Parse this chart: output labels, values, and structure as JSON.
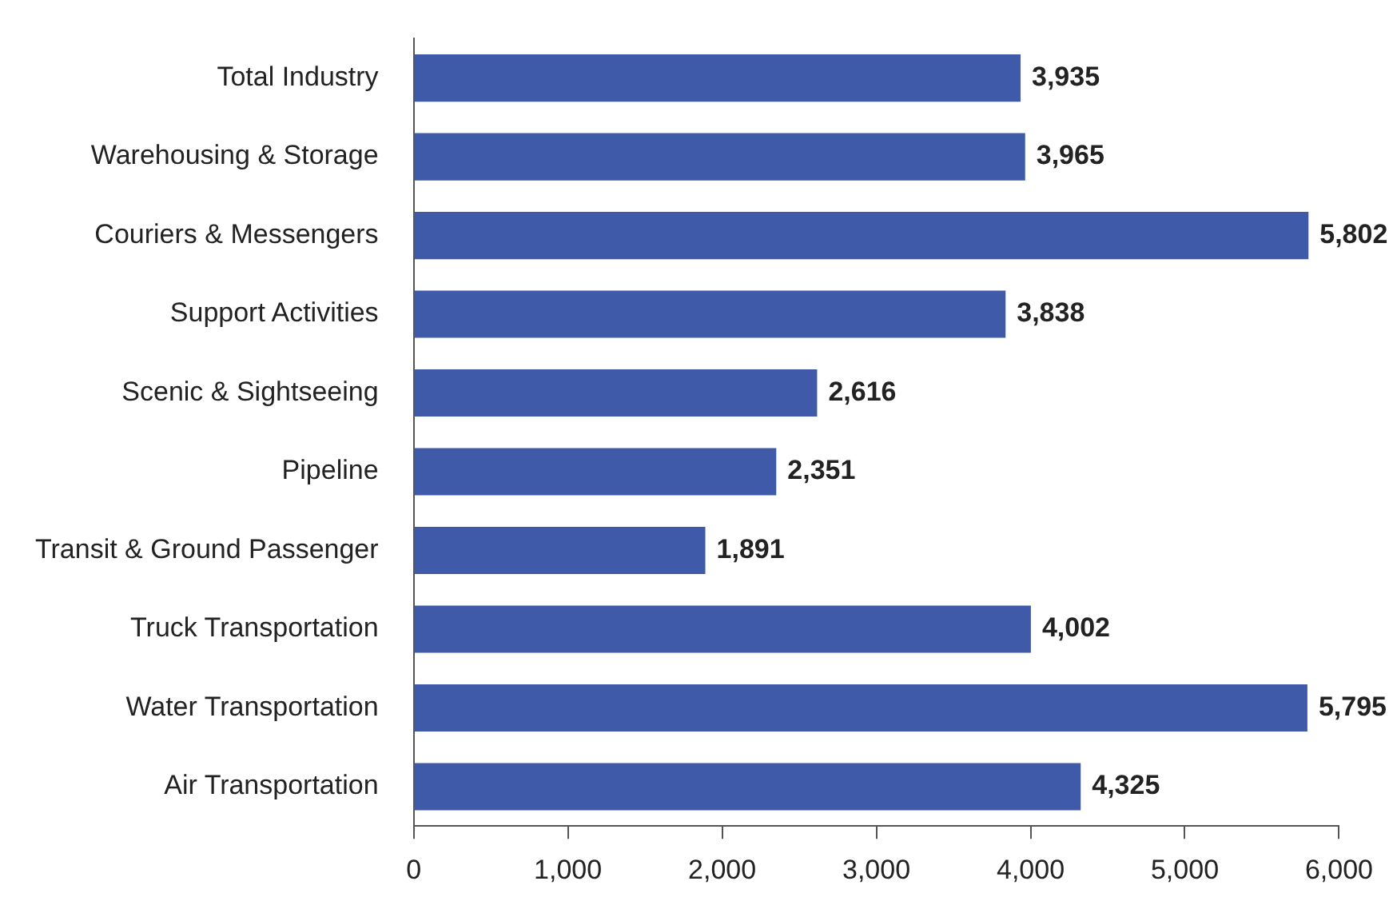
{
  "chart_data": {
    "type": "bar",
    "orientation": "horizontal",
    "categories": [
      "Total Industry",
      "Warehousing & Storage",
      "Couriers & Messengers",
      "Support Activities",
      "Scenic & Sightseeing",
      "Pipeline",
      "Transit & Ground Passenger",
      "Truck Transportation",
      "Water Transportation",
      "Air Transportation"
    ],
    "values": [
      3935,
      3965,
      5802,
      3838,
      2616,
      2351,
      1891,
      4002,
      5795,
      4325
    ],
    "value_labels": [
      "3,935",
      "3,965",
      "5,802",
      "3,838",
      "2,616",
      "2,351",
      "1,891",
      "4,002",
      "5,795",
      "4,325"
    ],
    "color": "#3f5aa9",
    "xlim": [
      0,
      6000
    ],
    "xticks": [
      0,
      {
        "value": 1000,
        "label": "1,000"
      },
      {
        "value": 2000,
        "label": "2,000"
      },
      {
        "value": 3000,
        "label": "3,000"
      },
      {
        "value": 4000,
        "label": "4,000"
      },
      {
        "value": 5000,
        "label": "5,000"
      },
      {
        "value": 6000,
        "label": "6,000"
      }
    ]
  }
}
